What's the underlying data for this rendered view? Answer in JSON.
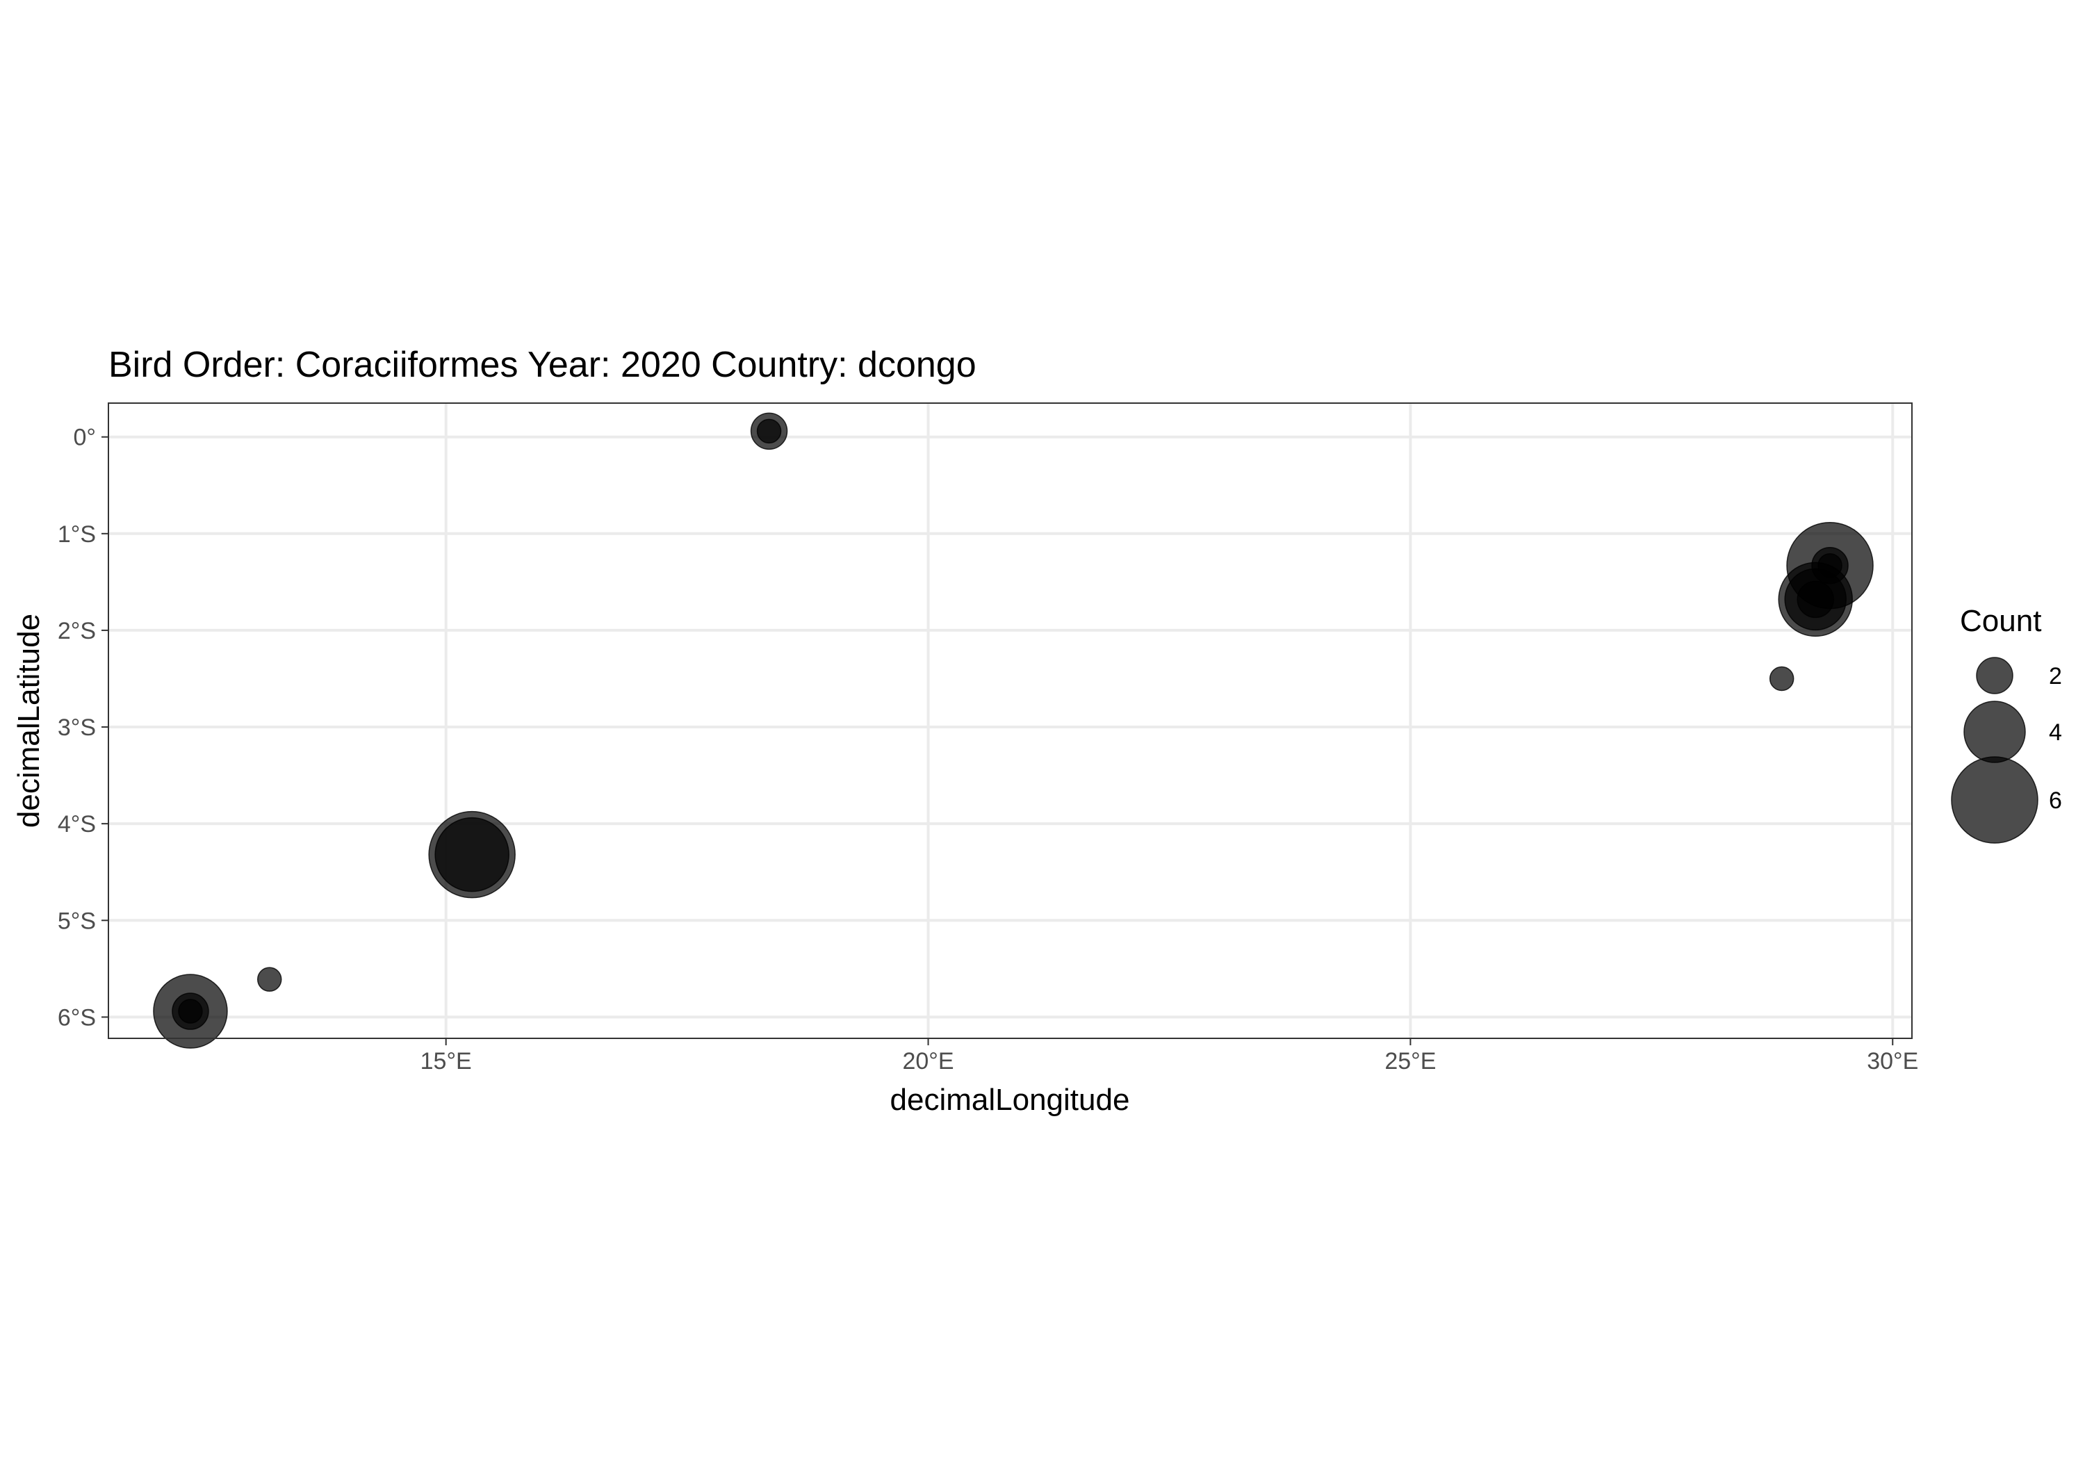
{
  "chart_data": {
    "type": "scatter",
    "title": "Bird Order: Coraciiformes Year: 2020 Country: dcongo",
    "xlabel": "decimalLongitude",
    "ylabel": "decimalLatitude",
    "xlim": [
      11.5,
      30.2
    ],
    "ylim": [
      -6.22,
      0.35
    ],
    "x_ticks": [
      {
        "value": 15,
        "label": "15°E"
      },
      {
        "value": 20,
        "label": "20°E"
      },
      {
        "value": 25,
        "label": "25°E"
      },
      {
        "value": 30,
        "label": "30°E"
      }
    ],
    "y_ticks": [
      {
        "value": 0,
        "label": "0°"
      },
      {
        "value": -1,
        "label": "1°S"
      },
      {
        "value": -2,
        "label": "2°S"
      },
      {
        "value": -3,
        "label": "3°S"
      },
      {
        "value": -4,
        "label": "4°S"
      },
      {
        "value": -5,
        "label": "5°S"
      },
      {
        "value": -6,
        "label": "6°S"
      }
    ],
    "grid": true,
    "point_color": "#000000",
    "point_opacity": 0.7,
    "legend": {
      "title": "Count",
      "position": "right",
      "entries": [
        {
          "value": 2,
          "label": "2"
        },
        {
          "value": 4,
          "label": "4"
        },
        {
          "value": 6,
          "label": "6"
        }
      ]
    },
    "points": [
      {
        "x": 18.35,
        "y": 0.06,
        "count": 2
      },
      {
        "x": 18.35,
        "y": 0.06,
        "count": 1
      },
      {
        "x": 29.35,
        "y": -1.33,
        "count": 6
      },
      {
        "x": 29.35,
        "y": -1.33,
        "count": 2
      },
      {
        "x": 29.35,
        "y": -1.33,
        "count": 1
      },
      {
        "x": 29.2,
        "y": -1.68,
        "count": 5
      },
      {
        "x": 29.2,
        "y": -1.68,
        "count": 4
      },
      {
        "x": 29.2,
        "y": -1.68,
        "count": 2
      },
      {
        "x": 28.85,
        "y": -2.5,
        "count": 1
      },
      {
        "x": 15.27,
        "y": -4.32,
        "count": 6
      },
      {
        "x": 15.27,
        "y": -4.32,
        "count": 5
      },
      {
        "x": 13.17,
        "y": -5.61,
        "count": 1
      },
      {
        "x": 12.35,
        "y": -5.94,
        "count": 5
      },
      {
        "x": 12.35,
        "y": -5.94,
        "count": 2
      },
      {
        "x": 12.35,
        "y": -5.94,
        "count": 1
      }
    ]
  }
}
